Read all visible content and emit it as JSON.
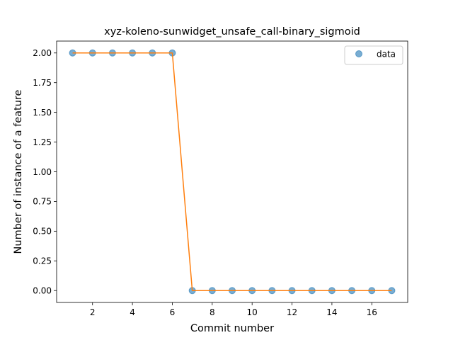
{
  "chart_data": {
    "type": "line",
    "title": "xyz-koleno-sunwidget_unsafe_call-binary_sigmoid",
    "xlabel": "Commit number",
    "ylabel": "Number of instance of a feature",
    "xlim": [
      0.2,
      17.8
    ],
    "ylim": [
      -0.1,
      2.1
    ],
    "xticks": [
      2,
      4,
      6,
      8,
      10,
      12,
      14,
      16
    ],
    "xtick_labels": [
      "2",
      "4",
      "6",
      "8",
      "10",
      "12",
      "14",
      "16"
    ],
    "yticks": [
      0.0,
      0.25,
      0.5,
      0.75,
      1.0,
      1.25,
      1.5,
      1.75,
      2.0
    ],
    "ytick_labels": [
      "0.00",
      "0.25",
      "0.50",
      "0.75",
      "1.00",
      "1.25",
      "1.50",
      "1.75",
      "2.00"
    ],
    "grid": false,
    "legend_position": "top-right",
    "series": [
      {
        "name": "data",
        "style": "markers",
        "color": "#1f77b4",
        "x": [
          1,
          2,
          3,
          4,
          5,
          6,
          7,
          8,
          9,
          10,
          11,
          12,
          13,
          14,
          15,
          16,
          17
        ],
        "y": [
          2,
          2,
          2,
          2,
          2,
          2,
          0,
          0,
          0,
          0,
          0,
          0,
          0,
          0,
          0,
          0,
          0
        ]
      },
      {
        "style": "line",
        "color": "#ff7f0e",
        "x": [
          1,
          2,
          3,
          4,
          5,
          6,
          7,
          8,
          9,
          10,
          11,
          12,
          13,
          14,
          15,
          16,
          17
        ],
        "y": [
          2,
          2,
          2,
          2,
          2,
          2,
          0,
          0,
          0,
          0,
          0,
          0,
          0,
          0,
          0,
          0,
          0
        ]
      }
    ]
  }
}
